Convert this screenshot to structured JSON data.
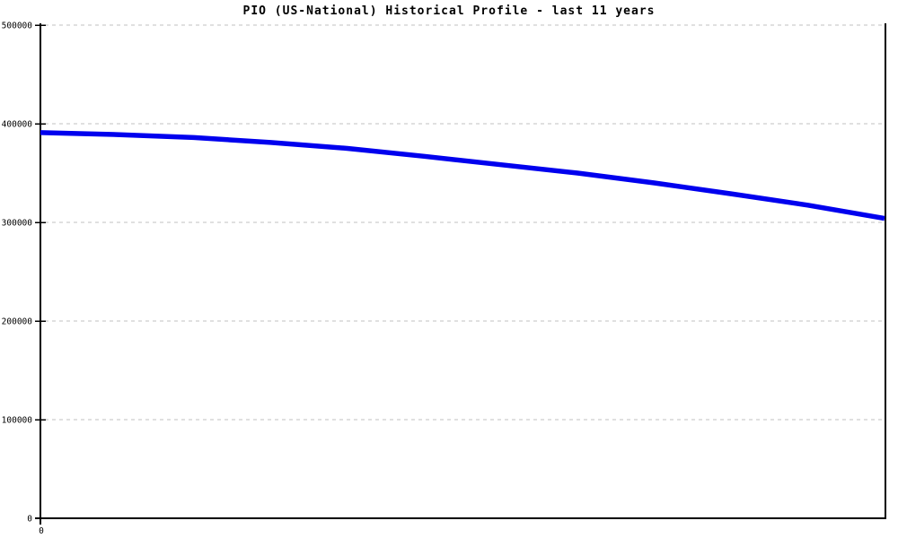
{
  "title": "PIO (US-National) Historical Profile - last 11 years",
  "colors": {
    "line": "#0000ee",
    "grid": "#c0c0c0",
    "axis": "#000000",
    "background": "#ffffff",
    "text": "#000000"
  },
  "y_axis": {
    "tick_labels": [
      "500000",
      "400000",
      "300000",
      "200000",
      "100000",
      "0"
    ],
    "tick_values": [
      500000,
      400000,
      300000,
      200000,
      100000,
      0
    ]
  },
  "x_axis": {
    "tick_labels": [
      "0"
    ]
  },
  "chart_data": {
    "type": "line",
    "title": "PIO (US-National) Historical Profile - last 11 years",
    "xlabel": "",
    "ylabel": "",
    "ylim": [
      0,
      500000
    ],
    "xlim": [
      0,
      11
    ],
    "x": [
      0,
      1,
      2,
      3,
      4,
      5,
      6,
      7,
      8,
      9,
      10,
      11
    ],
    "grid": "horizontal-dashed",
    "legend": "none",
    "series": [
      {
        "name": "PIO (US-National) historical profile",
        "color": "#0000ee",
        "values": [
          391000,
          389000,
          386000,
          381000,
          375000,
          367000,
          358500,
          350000,
          340000,
          329000,
          317500,
          304000
        ]
      }
    ]
  }
}
